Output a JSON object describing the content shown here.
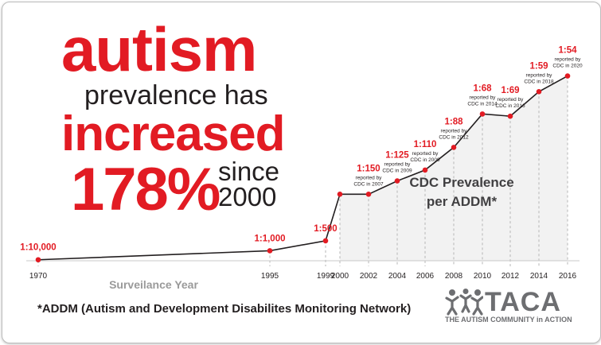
{
  "headline": {
    "line1": "autism",
    "line2": "prevalence has",
    "line3": "increased",
    "line4a": "178%",
    "line4b": "since",
    "line4c": "2000"
  },
  "chart_data": {
    "type": "line",
    "title": "CDC Prevalence per ADDM*",
    "title_line1": "CDC Prevalence",
    "title_line2": "per ADDM*",
    "xlabel": "Surveilance Year",
    "ylabel": "",
    "x": [
      1970,
      1995,
      1999,
      2000,
      2002,
      2004,
      2006,
      2008,
      2010,
      2012,
      2014,
      2016
    ],
    "tick_labels": [
      "1970",
      "1995",
      "1999",
      "2000",
      "2002",
      "2004",
      "2006",
      "2008",
      "2010",
      "2012",
      "2014",
      "2016"
    ],
    "prevalence_per_1000": [
      0.1,
      1,
      2,
      6.67,
      6.67,
      8,
      9.09,
      11.36,
      14.71,
      14.49,
      16.95,
      18.52
    ],
    "ylim": [
      0,
      20
    ],
    "point_labels": [
      {
        "value": "1:10,000",
        "note1": "",
        "note2": ""
      },
      {
        "value": "1:1,000",
        "note1": "",
        "note2": ""
      },
      {
        "value": "1:500",
        "note1": "",
        "note2": ""
      },
      {
        "value": "",
        "note1": "",
        "note2": ""
      },
      {
        "value": "1:150",
        "note1": "reported by",
        "note2": "CDC in 2007"
      },
      {
        "value": "1:125",
        "note1": "reported by",
        "note2": "CDC in 2009"
      },
      {
        "value": "1:110",
        "note1": "reported by",
        "note2": "CDC in 2009"
      },
      {
        "value": "1:88",
        "note1": "reported by",
        "note2": "CDC in 2012"
      },
      {
        "value": "1:68",
        "note1": "reported by",
        "note2": "CDC in 2014"
      },
      {
        "value": "1:69",
        "note1": "reported by",
        "note2": "CDC in 2016"
      },
      {
        "value": "1:59",
        "note1": "reported by",
        "note2": "CDC in 2018"
      },
      {
        "value": "1:54",
        "note1": "reported by",
        "note2": "CDC in 2020"
      }
    ],
    "colors": {
      "line": "#231f20",
      "point": "#e21b23",
      "label": "#e21b23",
      "fill": "#f2f2f2",
      "axis_label": "#9a9a9a"
    }
  },
  "footnote": "*ADDM (Autism and Development Disabilites Monitoring Network)",
  "logo": {
    "name": "TACA",
    "tagline": "THE AUTISM COMMUNITY in ACTION"
  }
}
